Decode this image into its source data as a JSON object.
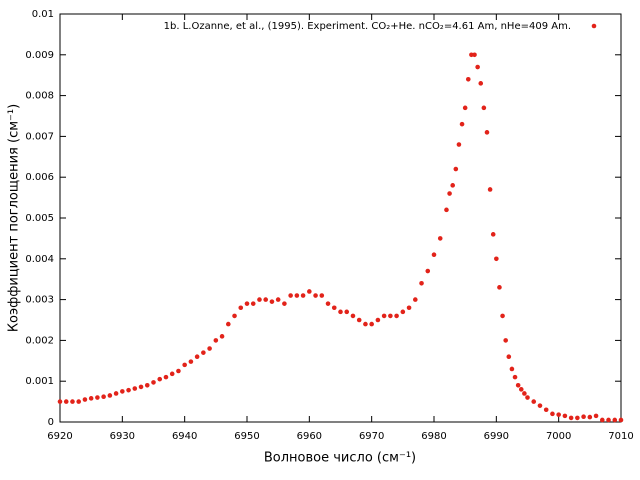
{
  "chart_data": {
    "type": "scatter",
    "legend_text": "1b. L.Ozanne, et al., (1995). Experiment. CO₂+He. nCO₂=4.61 Am, nHe=409 Am.",
    "x_label": "Волновое число (см⁻¹)",
    "y_label": "Коэффициент поглощения (см⁻¹)",
    "legend": "top right",
    "color": "#e2231a",
    "xlim": [
      6920,
      7010
    ],
    "ylim": [
      0,
      0.01
    ],
    "xticks": [
      6920,
      6930,
      6940,
      6950,
      6960,
      6970,
      6980,
      6990,
      7000,
      7010
    ],
    "yticks": [
      0,
      0.001,
      0.002,
      0.003,
      0.004,
      0.005,
      0.006,
      0.007,
      0.008,
      0.009,
      0.01
    ],
    "x": [
      6920,
      6921,
      6922,
      6923,
      6924,
      6925,
      6926,
      6927,
      6928,
      6929,
      6930,
      6931,
      6932,
      6933,
      6934,
      6935,
      6936,
      6937,
      6938,
      6939,
      6940,
      6941,
      6942,
      6943,
      6944,
      6945,
      6946,
      6947,
      6948,
      6949,
      6950,
      6951,
      6952,
      6953,
      6954,
      6955,
      6956,
      6957,
      6958,
      6959,
      6960,
      6961,
      6962,
      6963,
      6964,
      6965,
      6966,
      6967,
      6968,
      6969,
      6970,
      6971,
      6972,
      6973,
      6974,
      6975,
      6976,
      6977,
      6978,
      6979,
      6980,
      6981,
      6982,
      6982.5,
      6983,
      6983.5,
      6984,
      6984.5,
      6985,
      6985.5,
      6986,
      6986.5,
      6987,
      6987.5,
      6988,
      6988.5,
      6989,
      6989.5,
      6990,
      6990.5,
      6991,
      6991.5,
      6992,
      6992.5,
      6993,
      6993.5,
      6994,
      6994.5,
      6995,
      6996,
      6997,
      6998,
      6999,
      7000,
      7001,
      7002,
      7003,
      7004,
      7005,
      7006,
      7007,
      7008,
      7009,
      7010
    ],
    "values": [
      0.0005,
      0.0005,
      0.0005,
      0.0005,
      0.00055,
      0.00058,
      0.0006,
      0.00062,
      0.00065,
      0.0007,
      0.00075,
      0.00078,
      0.00082,
      0.00086,
      0.0009,
      0.00097,
      0.00105,
      0.0011,
      0.00118,
      0.00125,
      0.0014,
      0.00148,
      0.0016,
      0.0017,
      0.0018,
      0.002,
      0.0021,
      0.0024,
      0.0026,
      0.0028,
      0.0029,
      0.0029,
      0.003,
      0.003,
      0.00295,
      0.003,
      0.0029,
      0.0031,
      0.0031,
      0.0031,
      0.0032,
      0.0031,
      0.0031,
      0.0029,
      0.0028,
      0.0027,
      0.0027,
      0.0026,
      0.0025,
      0.0024,
      0.0024,
      0.0025,
      0.0026,
      0.0026,
      0.0026,
      0.0027,
      0.0028,
      0.003,
      0.0034,
      0.0037,
      0.0041,
      0.0045,
      0.0052,
      0.0056,
      0.0058,
      0.0062,
      0.0068,
      0.0073,
      0.0077,
      0.0084,
      0.009,
      0.009,
      0.0087,
      0.0083,
      0.0077,
      0.0071,
      0.0057,
      0.0046,
      0.004,
      0.0033,
      0.0026,
      0.002,
      0.0016,
      0.0013,
      0.0011,
      0.0009,
      0.0008,
      0.0007,
      0.0006,
      0.0005,
      0.0004,
      0.0003,
      0.0002,
      0.00018,
      0.00015,
      0.0001,
      0.0001,
      0.00013,
      0.00012,
      0.00015,
      5e-05,
      5e-05,
      5e-05,
      5e-05
    ]
  }
}
